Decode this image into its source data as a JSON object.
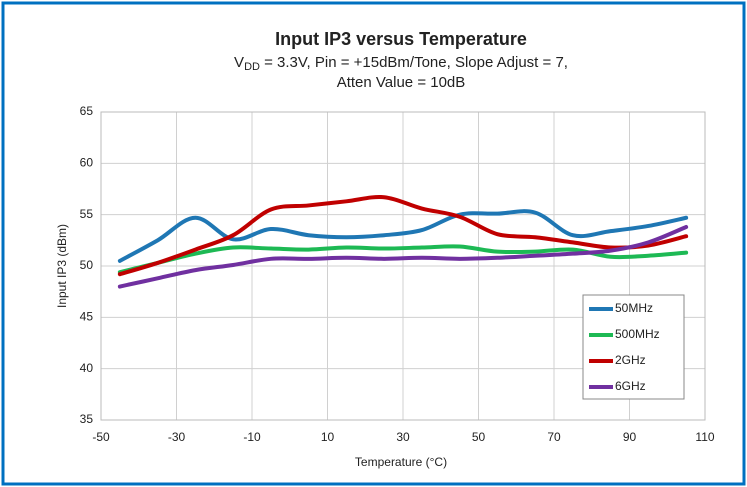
{
  "chart_data": {
    "type": "line",
    "title": "Input IP3 versus Temperature",
    "subtitle": [
      "V",
      "DD",
      " = 3.3V, Pin = +15dBm/Tone, Slope Adjust = 7,",
      "Atten Value = 10dB"
    ],
    "x_label": "Temperature (°C)",
    "y_label": "Input IP3 (dBm)",
    "x": [
      -45,
      -35,
      -25,
      -15,
      -5,
      5,
      15,
      25,
      35,
      45,
      55,
      65,
      75,
      85,
      95,
      105
    ],
    "series": [
      {
        "name": "50MHz",
        "color": "#1f77b4",
        "values": [
          50.5,
          52.5,
          54.7,
          52.6,
          53.6,
          53.0,
          52.8,
          53.0,
          53.5,
          55.0,
          55.1,
          55.2,
          53.0,
          53.4,
          53.9,
          54.7
        ]
      },
      {
        "name": "500MHz",
        "color": "#1db954",
        "values": [
          49.4,
          50.3,
          51.2,
          51.8,
          51.7,
          51.6,
          51.8,
          51.7,
          51.8,
          51.9,
          51.4,
          51.4,
          51.6,
          50.9,
          51.0,
          51.3
        ]
      },
      {
        "name": "2GHz",
        "color": "#c00000",
        "values": [
          49.2,
          50.3,
          51.6,
          53.0,
          55.5,
          55.9,
          56.3,
          56.7,
          55.6,
          54.8,
          53.1,
          52.8,
          52.3,
          51.8,
          52.0,
          52.9
        ]
      },
      {
        "name": "6GHz",
        "color": "#7030a0",
        "values": [
          48.0,
          48.8,
          49.6,
          50.1,
          50.7,
          50.7,
          50.8,
          50.7,
          50.8,
          50.7,
          50.8,
          51.0,
          51.2,
          51.5,
          52.3,
          53.8
        ]
      }
    ],
    "xlim": [
      -50,
      110
    ],
    "xticks": [
      -50,
      -30,
      -10,
      10,
      30,
      50,
      70,
      90,
      110
    ],
    "ylim": [
      35,
      65
    ],
    "yticks": [
      35,
      40,
      45,
      50,
      55,
      60,
      65
    ],
    "grid": true,
    "legend": "lower right"
  }
}
